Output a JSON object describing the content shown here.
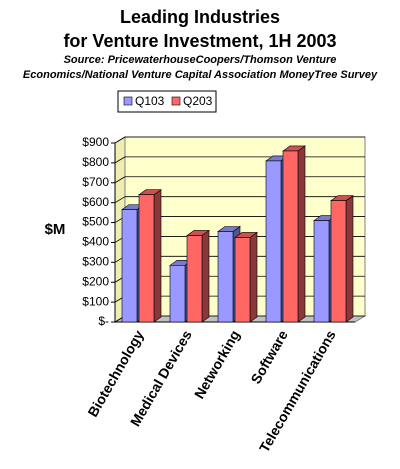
{
  "chart_data": {
    "type": "bar3d",
    "title": [
      "Leading Industries",
      "for Venture Investment, 1H 2003"
    ],
    "subtitle": [
      "Source: PricewaterhouseCoopers/Thomson Venture",
      "Economics/National Venture Capital Association MoneyTree Survey"
    ],
    "y_label": "$M",
    "categories": [
      "Biotechnology",
      "Medical Devices",
      "Networking",
      "Software",
      "Telecommunications"
    ],
    "series": [
      {
        "name": "Q103",
        "color": "#9999ff",
        "values": [
          565,
          285,
          455,
          810,
          510
        ]
      },
      {
        "name": "Q203",
        "color": "#ff6666",
        "values": [
          640,
          435,
          425,
          860,
          610
        ]
      }
    ],
    "ylim": [
      0,
      900
    ],
    "yticks": [
      {
        "value": 0,
        "label": "$-"
      },
      {
        "value": 100,
        "label": "$100"
      },
      {
        "value": 200,
        "label": "$200"
      },
      {
        "value": 300,
        "label": "$300"
      },
      {
        "value": 400,
        "label": "$400"
      },
      {
        "value": 500,
        "label": "$500"
      },
      {
        "value": 600,
        "label": "$600"
      },
      {
        "value": 700,
        "label": "$700"
      },
      {
        "value": 800,
        "label": "$800"
      },
      {
        "value": 900,
        "label": "$900"
      }
    ],
    "grid": true,
    "legend": "top"
  }
}
